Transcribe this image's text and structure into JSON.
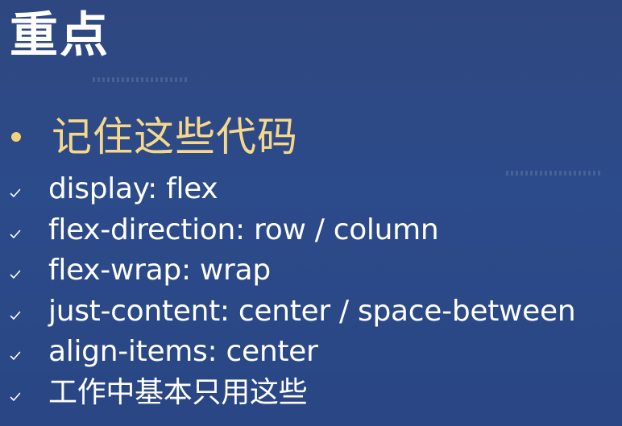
{
  "slide": {
    "title": "重点",
    "bullet": {
      "text": "记住这些代码",
      "color": "#f6d88a"
    },
    "checklist": [
      {
        "text": "display: flex",
        "icon": "checkmark-icon"
      },
      {
        "text": "flex-direction: row / column",
        "icon": "checkmark-icon"
      },
      {
        "text": "flex-wrap: wrap",
        "icon": "checkmark-icon"
      },
      {
        "text": "just-content: center / space-between",
        "icon": "checkmark-icon"
      },
      {
        "text": "align-items: center",
        "icon": "checkmark-icon"
      },
      {
        "text": "工作中基本只用这些",
        "icon": "checkmark-icon"
      }
    ],
    "colors": {
      "background": "#2c4b8a",
      "title": "#ffffff",
      "accent": "#f6d88a"
    }
  }
}
